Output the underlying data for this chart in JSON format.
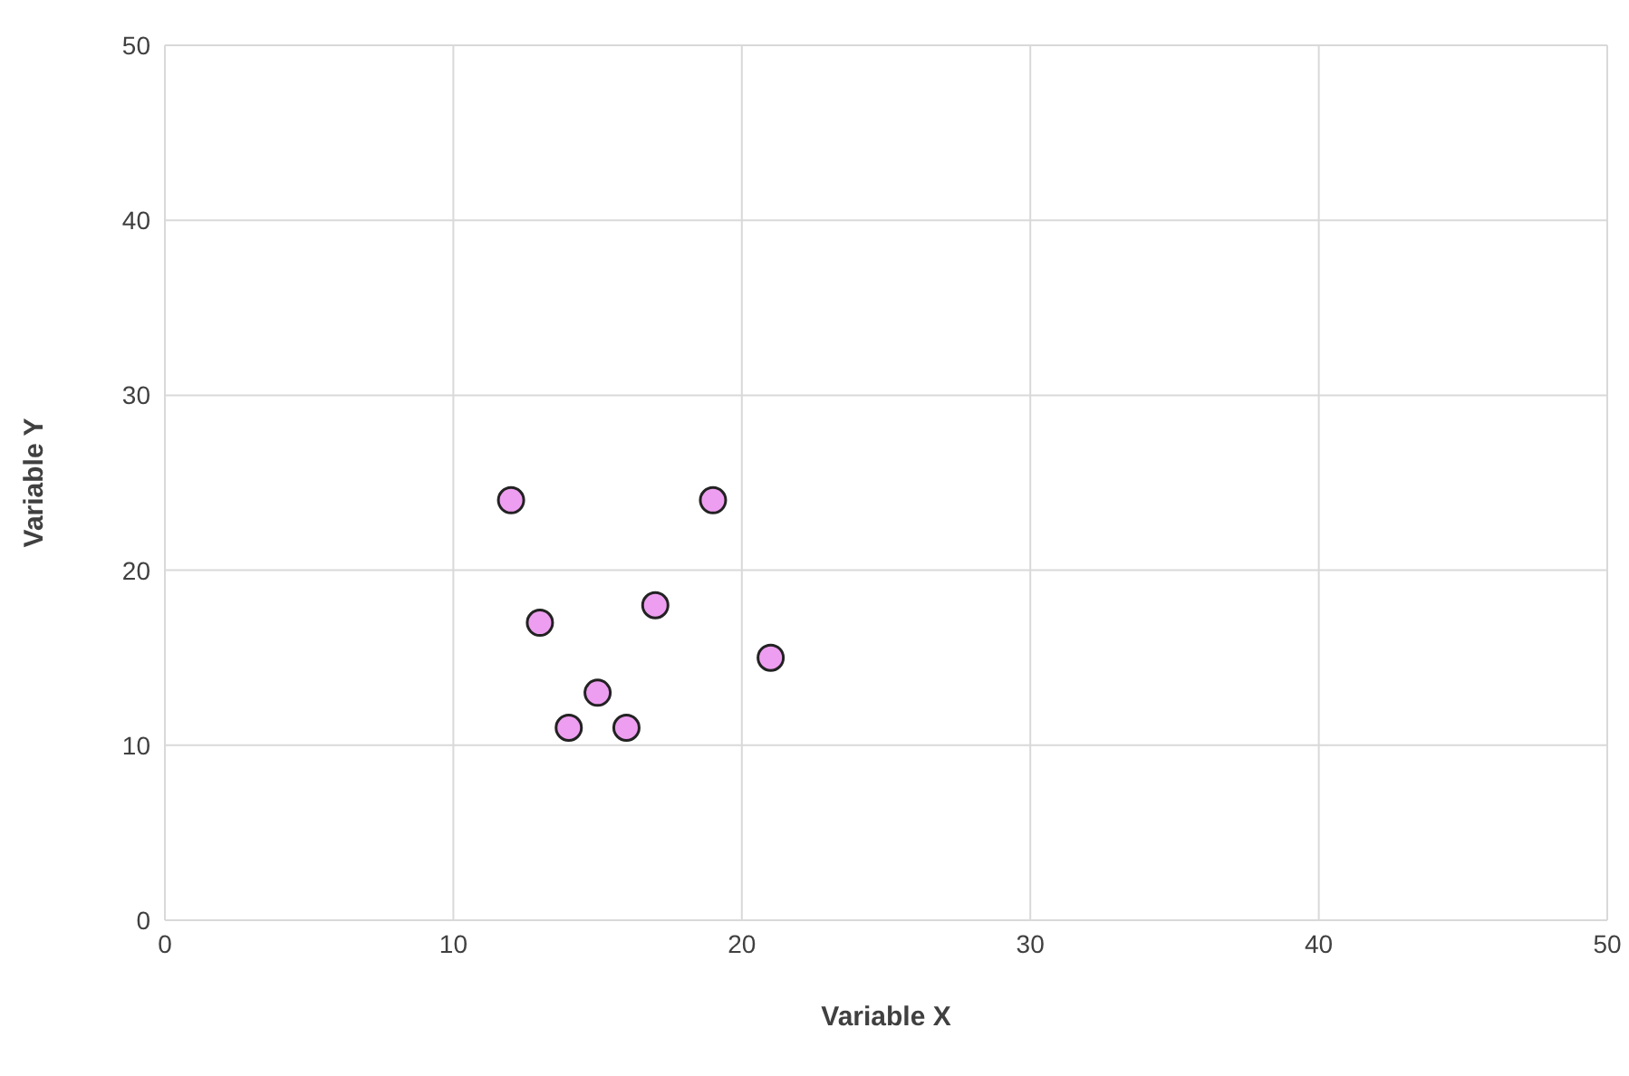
{
  "chart_data": {
    "type": "scatter",
    "xlabel": "Variable X",
    "ylabel": "Variable Y",
    "x": [
      12,
      19,
      13,
      17,
      21,
      15,
      14,
      16
    ],
    "values": [
      24,
      24,
      17,
      18,
      15,
      13,
      11,
      11
    ],
    "color": "#ee9ef0",
    "xlim": [
      0,
      50
    ],
    "ylim": [
      0,
      50
    ],
    "xticks": [
      0,
      10,
      20,
      30,
      40,
      50
    ],
    "yticks": [
      0,
      10,
      20,
      30,
      40,
      50
    ],
    "grid": true,
    "legend": false,
    "marker": "circle"
  }
}
